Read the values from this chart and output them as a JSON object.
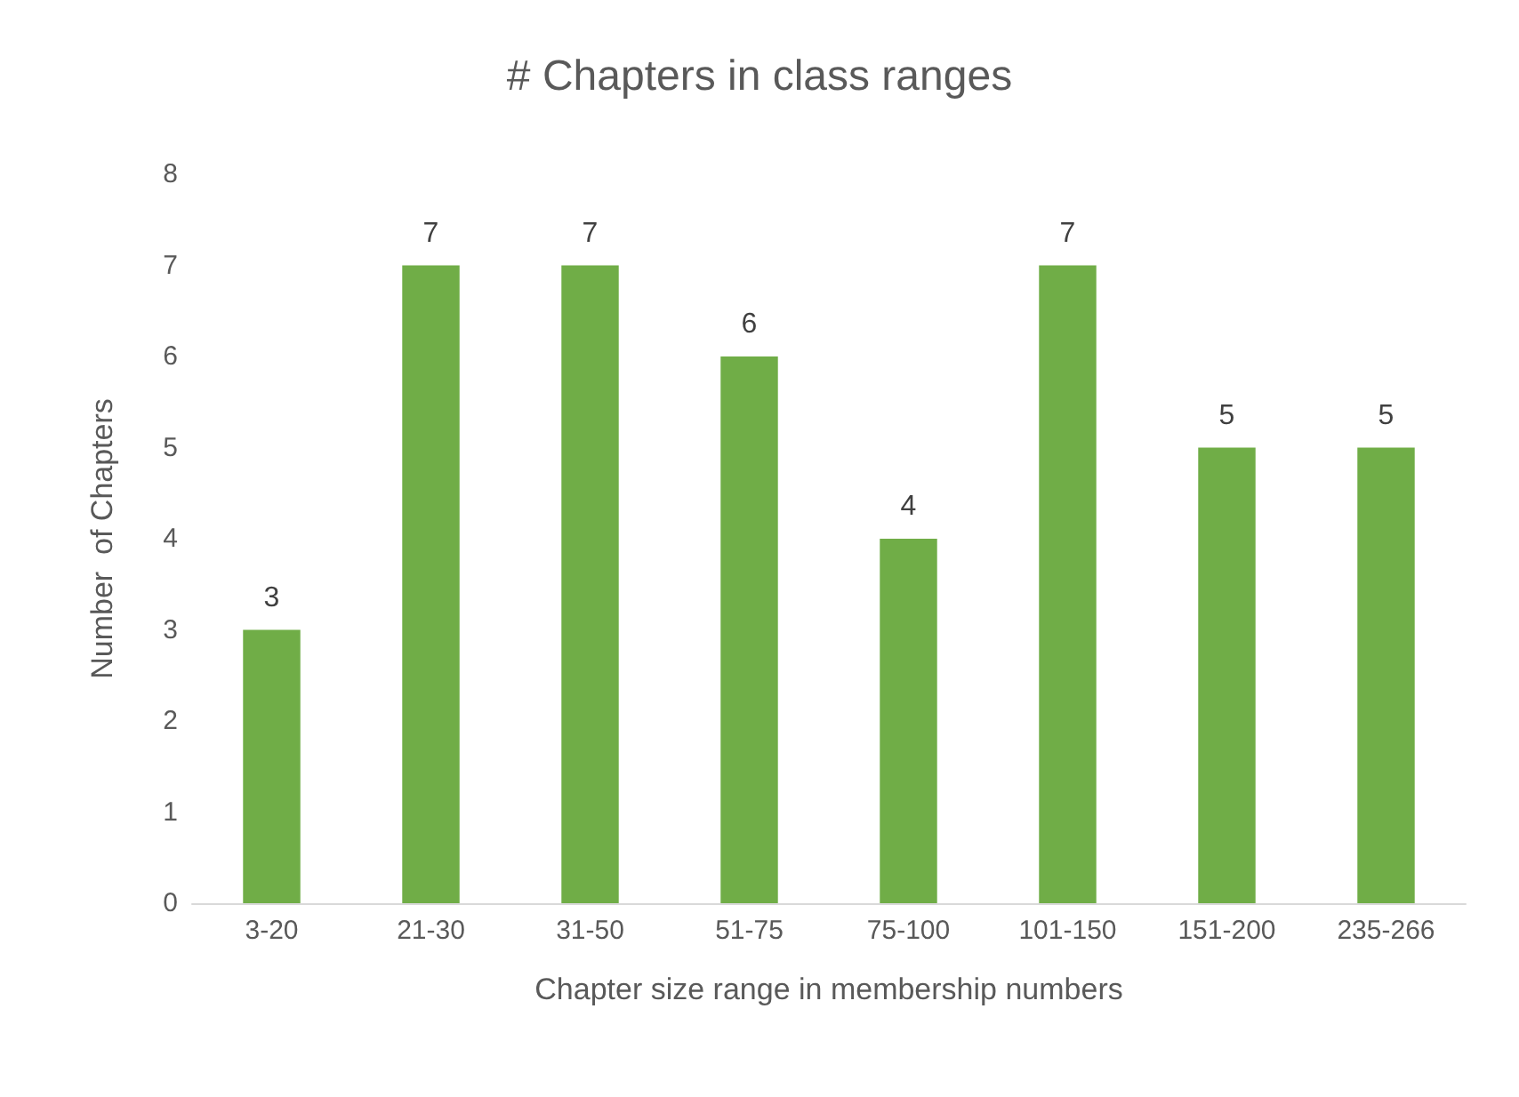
{
  "chart_data": {
    "type": "bar",
    "title": "# Chapters in class ranges",
    "xlabel": "Chapter size range in membership numbers",
    "ylabel": "Number  of Chapters",
    "categories": [
      "3-20",
      "21-30",
      "31-50",
      "51-75",
      "75-100",
      "101-150",
      "151-200",
      "235-266"
    ],
    "series": [
      {
        "color": "#70ad47",
        "values": [
          3,
          7,
          7,
          6,
          4,
          7,
          5,
          5
        ]
      }
    ],
    "ylim": [
      0,
      8
    ],
    "yticks": [
      0,
      1,
      2,
      3,
      4,
      5,
      6,
      7,
      8
    ],
    "grid": false,
    "data_labels": true
  }
}
